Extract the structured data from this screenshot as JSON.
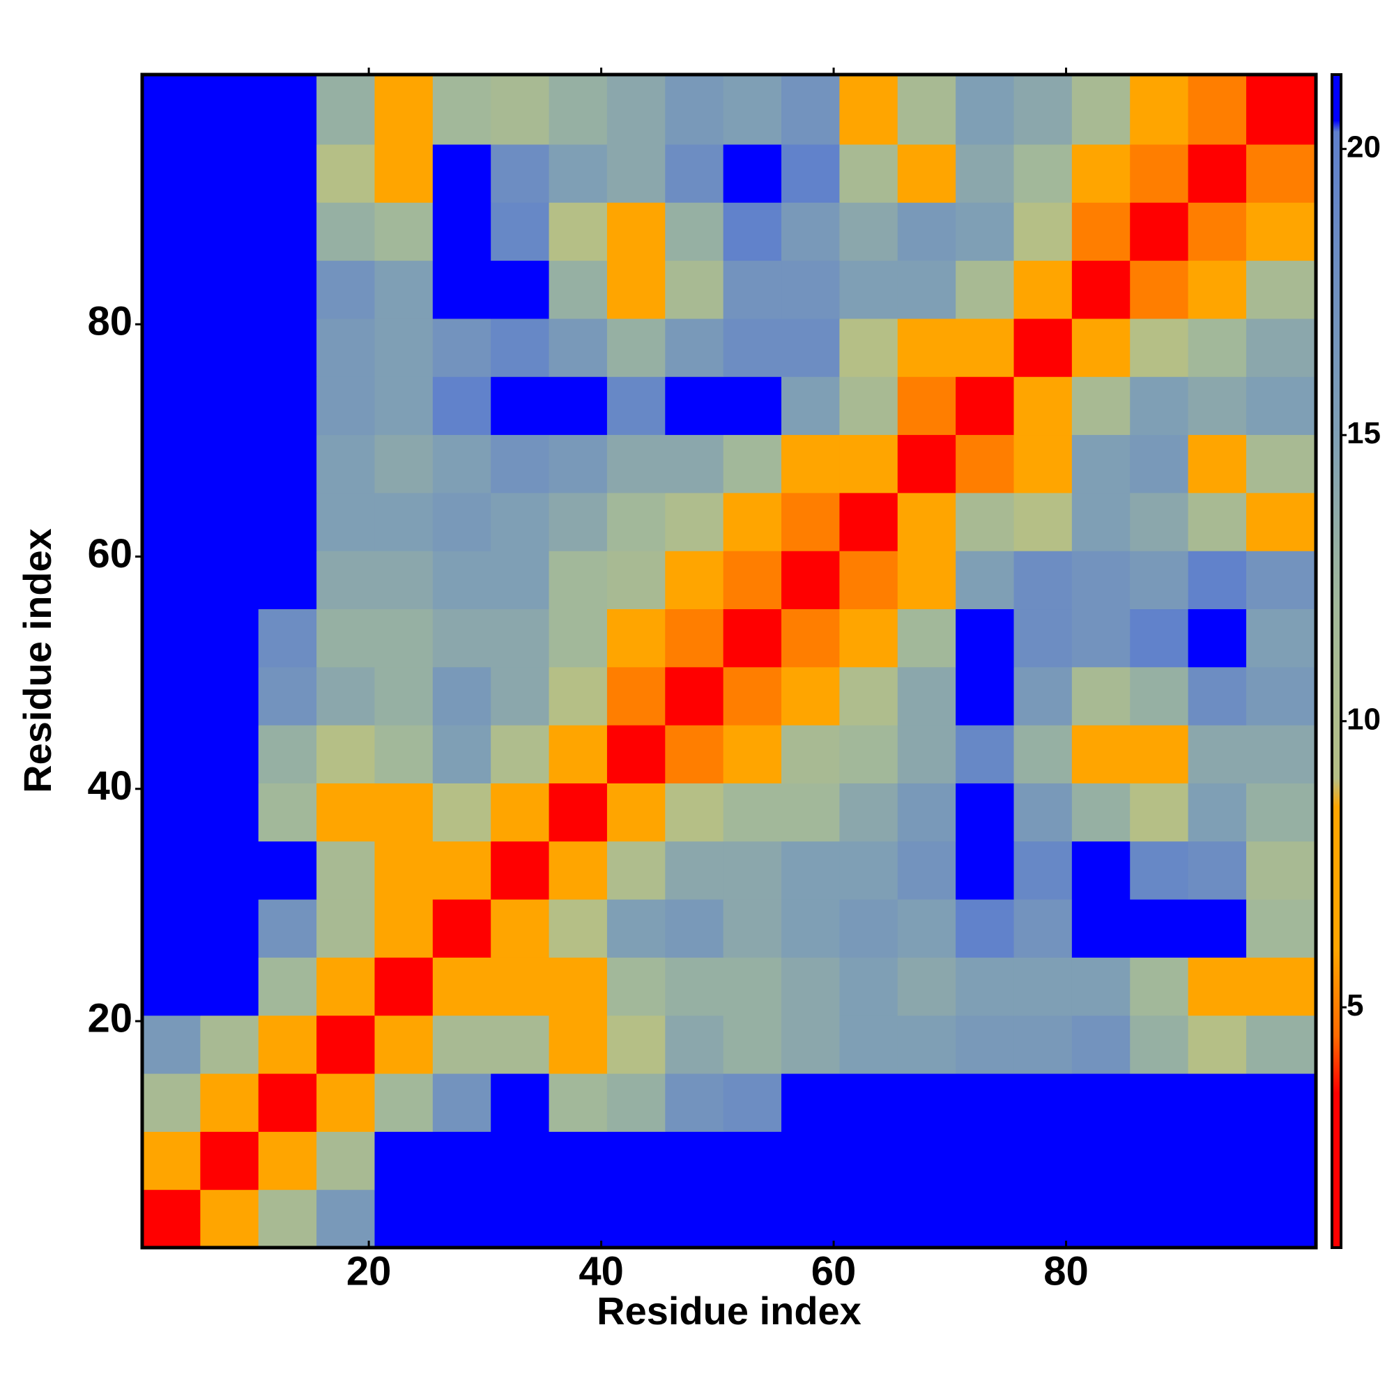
{
  "chart_data": {
    "type": "heatmap",
    "x_label": "Residue index",
    "y_label": "Residue index",
    "xbins": [
      0.5,
      5.5,
      10.5,
      15.5,
      20.5,
      25.5,
      30.5,
      35.5,
      40.5,
      45.5,
      50.5,
      55.5,
      60.5,
      65.5,
      70.5,
      75.5,
      80.5,
      85.5,
      90.5,
      95.5,
      101.5
    ],
    "ybins": [
      0.5,
      5.5,
      10.5,
      15.5,
      20.5,
      25.5,
      30.5,
      35.5,
      40.5,
      45.5,
      50.5,
      55.5,
      60.5,
      65.5,
      70.5,
      75.5,
      80.5,
      85.5,
      90.5,
      95.5,
      101.5
    ],
    "values": [
      [
        2,
        6,
        11,
        16,
        21,
        21,
        21,
        21,
        21,
        21,
        21,
        21,
        21,
        21,
        21,
        21,
        21,
        21,
        21,
        21
      ],
      [
        6,
        2,
        6,
        11,
        21,
        21,
        21,
        21,
        21,
        21,
        21,
        21,
        21,
        21,
        21,
        21,
        21,
        21,
        21,
        21
      ],
      [
        11,
        6,
        2,
        6,
        12,
        17,
        21,
        12,
        13,
        17,
        18,
        21,
        21,
        21,
        21,
        21,
        21,
        21,
        21,
        21
      ],
      [
        16,
        11,
        6,
        2,
        7,
        11,
        11,
        8,
        9,
        14,
        13,
        14,
        15,
        15,
        16,
        16,
        17,
        13,
        9,
        13
      ],
      [
        21,
        21,
        12,
        7,
        2,
        6,
        6,
        7,
        12,
        13,
        13,
        14,
        15,
        14,
        15,
        15,
        15,
        12,
        7,
        6
      ],
      [
        21,
        21,
        17,
        11,
        6,
        2,
        6,
        9,
        15,
        16,
        14,
        15,
        16,
        15,
        20,
        17,
        21,
        21,
        21,
        12
      ],
      [
        21,
        21,
        21,
        11,
        6,
        6,
        2,
        6,
        10,
        14,
        14,
        15,
        15,
        17,
        21,
        19,
        21,
        19,
        18,
        11
      ],
      [
        21,
        21,
        12,
        8,
        7,
        9,
        6,
        2,
        6,
        9,
        12,
        12,
        14,
        16,
        21,
        16,
        13,
        9,
        15,
        13
      ],
      [
        21,
        21,
        13,
        9,
        12,
        15,
        10,
        6,
        2,
        5,
        8,
        11,
        12,
        14,
        19,
        13,
        7,
        6,
        14,
        14
      ],
      [
        21,
        21,
        17,
        14,
        13,
        16,
        14,
        9,
        5,
        2,
        5,
        7,
        10,
        14,
        21,
        16,
        11,
        13,
        18,
        16
      ],
      [
        21,
        21,
        18,
        13,
        13,
        14,
        14,
        12,
        8,
        5,
        2,
        5,
        7,
        12,
        21,
        18,
        17,
        20,
        21,
        15
      ],
      [
        21,
        21,
        21,
        14,
        14,
        15,
        15,
        12,
        11,
        7,
        5,
        2,
        5,
        7,
        15,
        18,
        17,
        16,
        20,
        17
      ],
      [
        21,
        21,
        21,
        15,
        15,
        16,
        15,
        14,
        12,
        10,
        7,
        5,
        2,
        6,
        11,
        9,
        15,
        14,
        11,
        6
      ],
      [
        21,
        21,
        21,
        15,
        14,
        15,
        17,
        16,
        14,
        14,
        12,
        7,
        6,
        2,
        5,
        7,
        15,
        16,
        8,
        11
      ],
      [
        21,
        21,
        21,
        16,
        15,
        20,
        21,
        21,
        19,
        21,
        21,
        15,
        11,
        5,
        2,
        6,
        11,
        15,
        14,
        15
      ],
      [
        21,
        21,
        21,
        16,
        15,
        17,
        19,
        16,
        13,
        16,
        18,
        18,
        9,
        7,
        6,
        2,
        6,
        9,
        12,
        14
      ],
      [
        21,
        21,
        21,
        17,
        15,
        21,
        21,
        13,
        7,
        11,
        17,
        17,
        15,
        15,
        11,
        6,
        2,
        5,
        7,
        11
      ],
      [
        21,
        21,
        21,
        13,
        12,
        21,
        19,
        9,
        6,
        13,
        20,
        16,
        14,
        16,
        15,
        9,
        5,
        2,
        5,
        7
      ],
      [
        21,
        21,
        21,
        9,
        7,
        21,
        18,
        15,
        14,
        18,
        21,
        20,
        11,
        8,
        14,
        12,
        7,
        5,
        2,
        5
      ],
      [
        21,
        21,
        21,
        13,
        6,
        12,
        11,
        13,
        14,
        16,
        15,
        17,
        6,
        11,
        15,
        14,
        11,
        7,
        5,
        2
      ]
    ],
    "xlim": [
      0.5,
      101.5
    ],
    "ylim": [
      0.5,
      101.5
    ],
    "xticks": [
      20,
      40,
      60,
      80
    ],
    "yticks": [
      20,
      40,
      60,
      80
    ],
    "colorbar_lim": [
      0.8,
      21.3
    ],
    "colorbar_ticks": [
      5,
      10,
      15,
      20
    ],
    "colormap": [
      [
        0.8,
        "#ff0000"
      ],
      [
        3.5,
        "#ff0000"
      ],
      [
        4.5,
        "#ff6a00"
      ],
      [
        6,
        "#ffa500"
      ],
      [
        8.5,
        "#ffa500"
      ],
      [
        9,
        "#b5bf86"
      ],
      [
        12,
        "#a2b89a"
      ],
      [
        15,
        "#7f9fb5"
      ],
      [
        20.3,
        "#5f80cc"
      ],
      [
        20.5,
        "#0000ff"
      ],
      [
        21.3,
        "#0000ff"
      ]
    ]
  }
}
